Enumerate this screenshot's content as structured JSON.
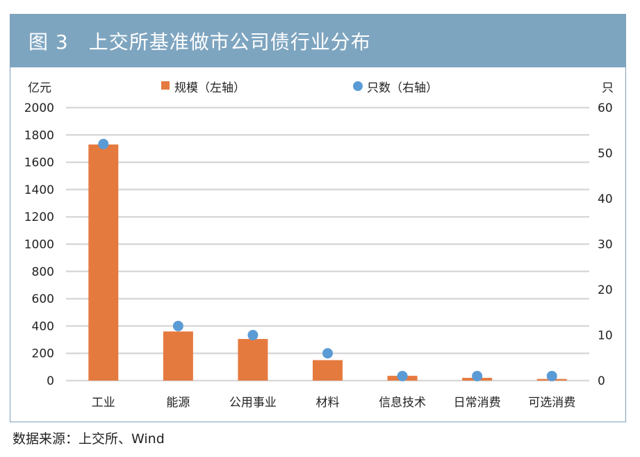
{
  "title": "图 3　上交所基准做市公司债行业分布",
  "source": "数据来源：上交所、Wind",
  "chart_data": {
    "type": "bar",
    "categories": [
      "工业",
      "能源",
      "公用事业",
      "材料",
      "信息技术",
      "日常消费",
      "可选消费"
    ],
    "series": [
      {
        "name": "规模（左轴）",
        "type": "bar",
        "axis": "left",
        "color": "#e57a3f",
        "values": [
          1730,
          360,
          305,
          150,
          35,
          20,
          12
        ]
      },
      {
        "name": "只数（右轴）",
        "type": "scatter",
        "axis": "right",
        "color": "#5b9bd5",
        "values": [
          52,
          12,
          10,
          6,
          1,
          1,
          1
        ]
      }
    ],
    "y_left": {
      "label": "亿元",
      "ylim": [
        0,
        2000
      ],
      "ticks": [
        0,
        200,
        400,
        600,
        800,
        1000,
        1200,
        1400,
        1600,
        1800,
        2000
      ]
    },
    "y_right": {
      "label": "只",
      "ylim": [
        0,
        60
      ],
      "ticks": [
        0,
        10,
        20,
        30,
        40,
        50,
        60
      ]
    },
    "grid": true,
    "legend_position": "top"
  }
}
